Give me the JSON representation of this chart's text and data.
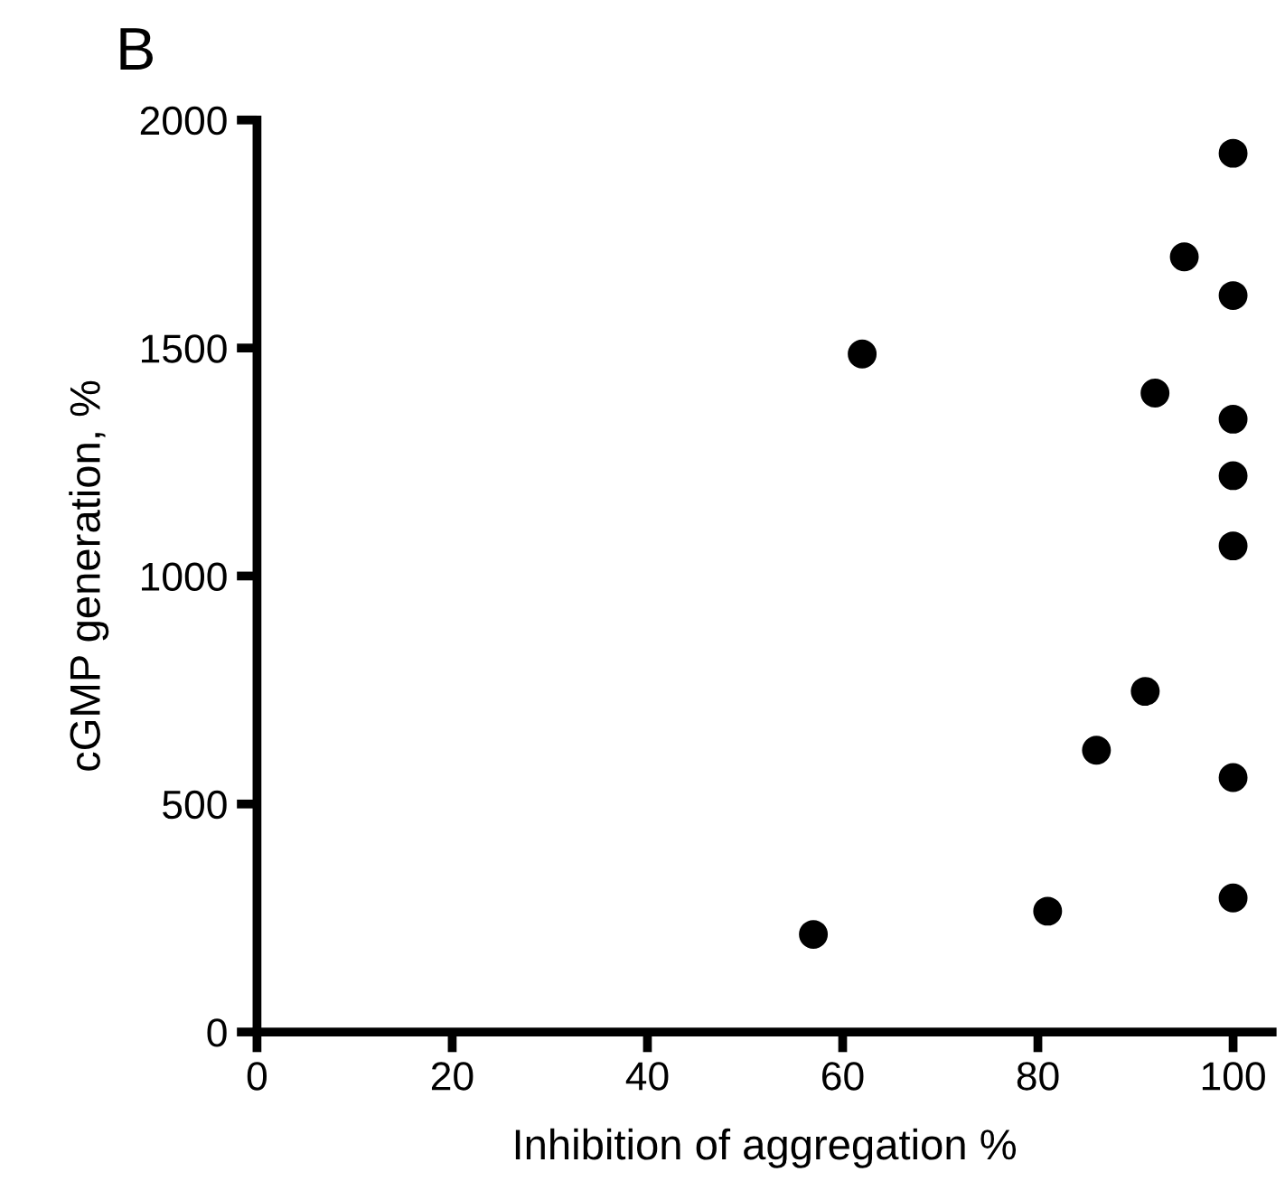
{
  "chart_data": {
    "type": "scatter",
    "title": "B",
    "xlabel": "Inhibition of aggregation %",
    "ylabel": "cGMP generation, %",
    "x": [
      100,
      95,
      100,
      62,
      92,
      100,
      100,
      100,
      91,
      86,
      100,
      100,
      81,
      57
    ],
    "values": [
      1927,
      1700,
      1615,
      1487,
      1401,
      1344,
      1220,
      1066,
      747,
      618,
      558,
      294,
      265,
      214
    ],
    "color": "#000000",
    "marker": "circle",
    "xlim": [
      0,
      104
    ],
    "xticks": [
      0,
      20,
      40,
      60,
      80,
      100
    ],
    "ylim": [
      0,
      2000
    ],
    "yticks": [
      0,
      500,
      1000,
      1500,
      2000
    ],
    "grid": false,
    "legend": false
  }
}
